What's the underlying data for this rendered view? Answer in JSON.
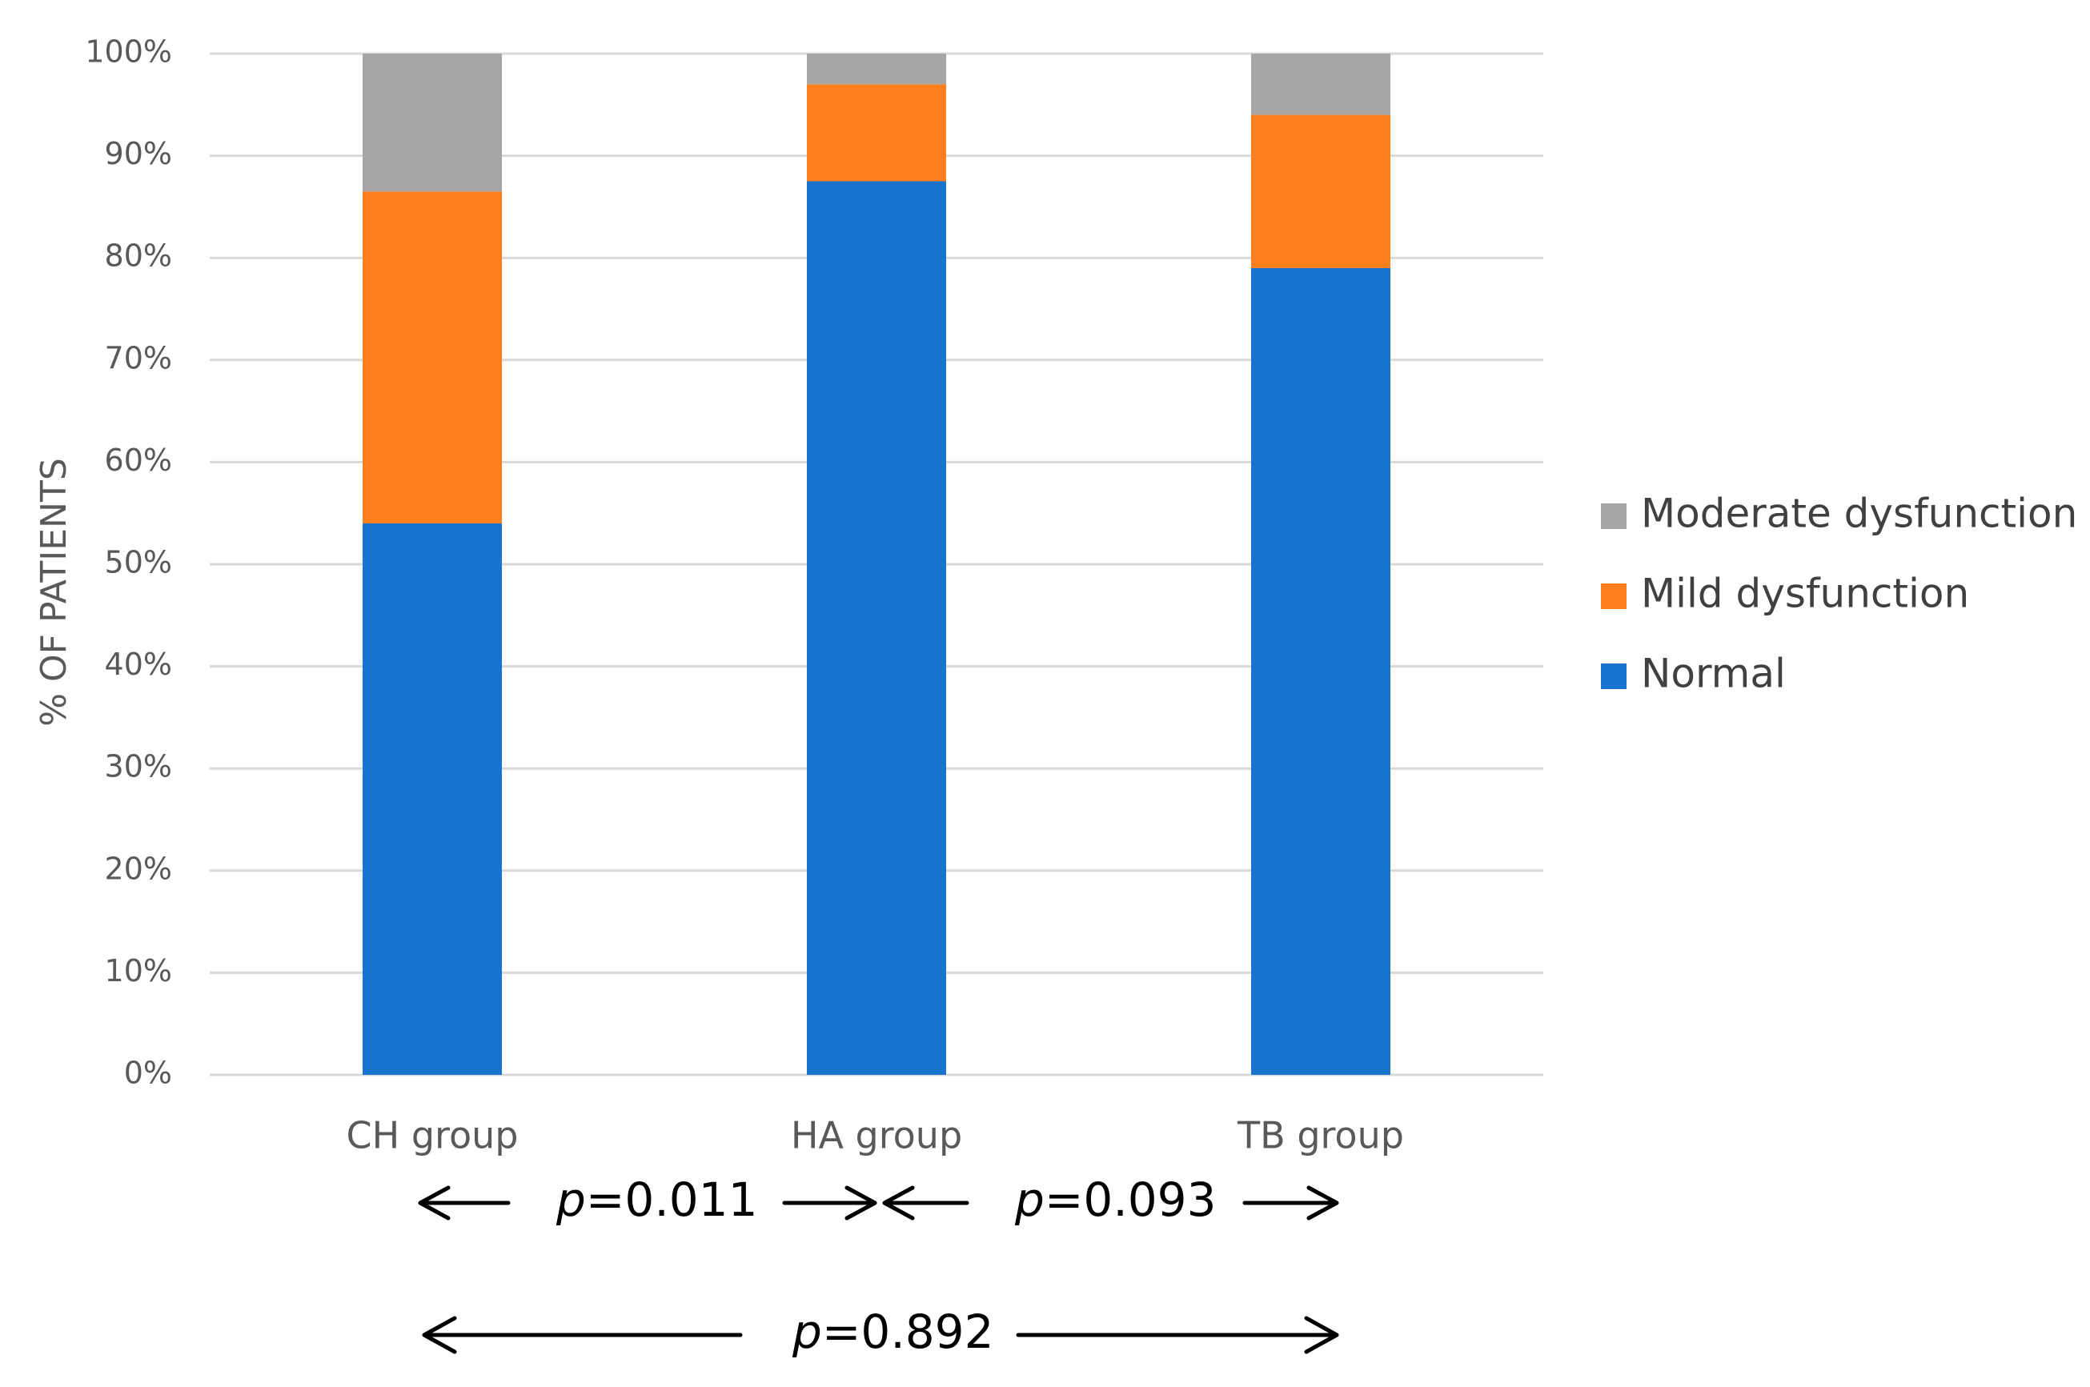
{
  "chart_data": {
    "type": "bar",
    "stacked": true,
    "categories": [
      "CH group",
      "HA group",
      "TB group"
    ],
    "series": [
      {
        "name": "Normal",
        "color": "#1874CD",
        "values": [
          54,
          87.5,
          79
        ]
      },
      {
        "name": "Mild dysfunction",
        "color": "#FF7F1E",
        "values": [
          32.5,
          9.5,
          15
        ]
      },
      {
        "name": "Moderate dysfunction",
        "color": "#A6A6A6",
        "values": [
          13.5,
          3,
          6
        ]
      }
    ],
    "title": "",
    "xlabel": "",
    "ylabel": "% OF PATIENTS",
    "ylim": [
      0,
      100
    ],
    "yticks": [
      "0%",
      "10%",
      "20%",
      "30%",
      "40%",
      "50%",
      "60%",
      "70%",
      "80%",
      "90%",
      "100%"
    ],
    "grid": true,
    "legend": {
      "position": "right",
      "entries": [
        "Moderate dysfunction",
        "Mild dysfunction",
        "Normal"
      ]
    },
    "annotations": [
      {
        "id": "ch-ha",
        "prefix": "p",
        "value": "=0.011",
        "from": "CH group",
        "to": "HA group"
      },
      {
        "id": "ha-tb",
        "prefix": "p",
        "value": "=0.093",
        "from": "HA group",
        "to": "TB group"
      },
      {
        "id": "ch-tb",
        "prefix": "p",
        "value": "=0.892",
        "from": "CH group",
        "to": "TB group"
      }
    ]
  }
}
